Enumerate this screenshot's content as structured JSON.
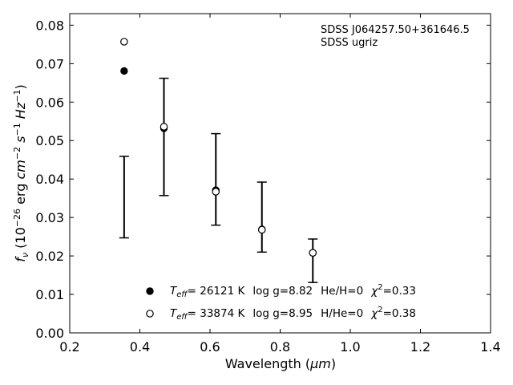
{
  "chart_data": {
    "type": "scatter",
    "xlabel_main": "Wavelength (",
    "xlabel_unit": "μm",
    "xlabel_close": ")",
    "ylabel_f": "f",
    "ylabel_nu": "ν",
    "ylabel_open": " (10",
    "ylabel_exp1": "−26",
    "ylabel_erg": " erg ",
    "ylabel_cm": "cm",
    "ylabel_exp2": "−2",
    "ylabel_s": " s",
    "ylabel_exp3": "−1",
    "ylabel_hz": " Hz",
    "ylabel_exp4": "−1",
    "ylabel_close": ")",
    "xlim": [
      0.2,
      1.4
    ],
    "ylim": [
      0.0,
      0.083
    ],
    "xticks": [
      0.2,
      0.4,
      0.6,
      0.8,
      1.0,
      1.2,
      1.4
    ],
    "xtick_labels": [
      "0.2",
      "0.4",
      "0.6",
      "0.8",
      "1.0",
      "1.2",
      "1.4"
    ],
    "yticks": [
      0.0,
      0.01,
      0.02,
      0.03,
      0.04,
      0.05,
      0.06,
      0.07,
      0.08
    ],
    "ytick_labels": [
      "0.00",
      "0.01",
      "0.02",
      "0.03",
      "0.04",
      "0.05",
      "0.06",
      "0.07",
      "0.08"
    ],
    "annotations": [
      "SDSS J064257.50+361646.5",
      "SDSS ugriz"
    ],
    "observed": {
      "x": [
        0.3551,
        0.4686,
        0.6166,
        0.748,
        0.8932
      ],
      "y_low": [
        0.0247,
        0.0357,
        0.028,
        0.021,
        0.0131
      ],
      "y_high": [
        0.0459,
        0.0662,
        0.0518,
        0.0392,
        0.0244
      ]
    },
    "series": [
      {
        "marker": "filled-circle",
        "x": [
          0.3551,
          0.4686,
          0.6166,
          0.748,
          0.8932
        ],
        "y": [
          0.0681,
          0.0532,
          0.0371,
          0.0269,
          0.0208
        ],
        "legend": {
          "t_symbol": "T",
          "t_sub": "eff",
          "teff": "= 26121 K",
          "logg": "log g=8.82",
          "comp": "He/H=0",
          "chi_symbol": "χ",
          "chi_sup": "2",
          "chi_val": "=0.33"
        }
      },
      {
        "marker": "open-circle",
        "x": [
          0.3551,
          0.4686,
          0.6166,
          0.748,
          0.8932
        ],
        "y": [
          0.0757,
          0.0536,
          0.0367,
          0.0268,
          0.0208
        ],
        "legend": {
          "t_symbol": "T",
          "t_sub": "eff",
          "teff": "= 33874 K",
          "logg": "log g=8.95",
          "comp": "H/He=0",
          "chi_symbol": "χ",
          "chi_sup": "2",
          "chi_val": "=0.38"
        }
      }
    ],
    "legend_position": "lower-center",
    "grid": false
  }
}
